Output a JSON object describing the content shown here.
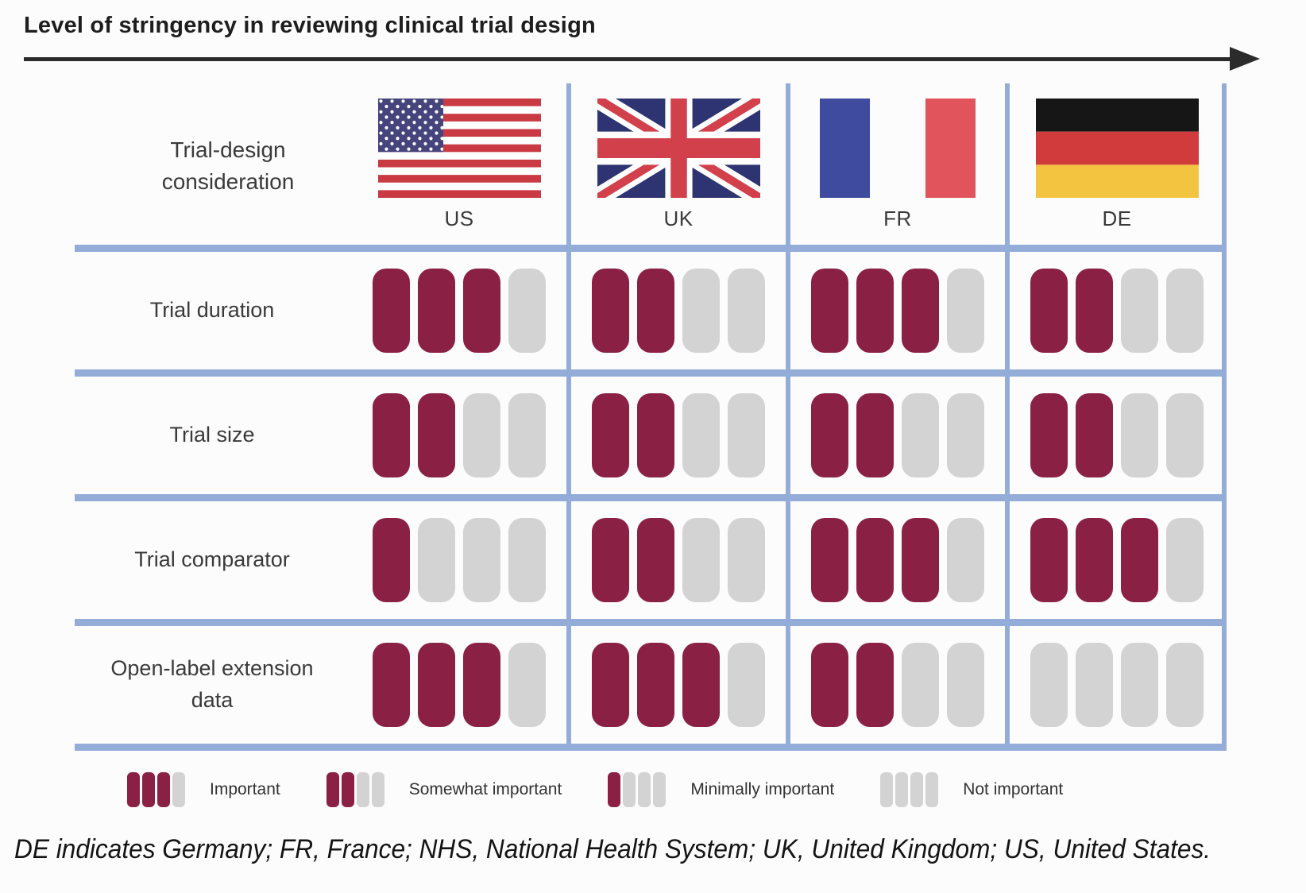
{
  "title": "Level of stringency in reviewing clinical trial design",
  "header": {
    "row_label": "Trial-design consideration",
    "columns": [
      {
        "code": "US",
        "flag_icon": "us-flag"
      },
      {
        "code": "UK",
        "flag_icon": "uk-flag"
      },
      {
        "code": "FR",
        "flag_icon": "fr-flag"
      },
      {
        "code": "DE",
        "flag_icon": "de-flag"
      }
    ]
  },
  "chart_data": {
    "type": "table",
    "title": "Level of stringency in reviewing clinical trial design",
    "categories": [
      "US",
      "UK",
      "FR",
      "DE"
    ],
    "scale_max": 4,
    "scale_meaning": {
      "3": "Important",
      "2": "Somewhat important",
      "1": "Minimally important",
      "0": "Not important"
    },
    "rows": [
      {
        "label": "Trial duration",
        "values": [
          3,
          2,
          3,
          2
        ]
      },
      {
        "label": "Trial size",
        "values": [
          2,
          2,
          2,
          2
        ]
      },
      {
        "label": "Trial comparator",
        "values": [
          1,
          2,
          3,
          3
        ]
      },
      {
        "label": "Open-label extension data",
        "values": [
          3,
          3,
          2,
          0
        ]
      }
    ]
  },
  "legend": [
    {
      "filled": 3,
      "label": "Important"
    },
    {
      "filled": 2,
      "label": "Somewhat important"
    },
    {
      "filled": 1,
      "label": "Minimally important"
    },
    {
      "filled": 0,
      "label": "Not important"
    }
  ],
  "footnote": "DE indicates Germany; FR, France; NHS, National Health System; UK, United Kingdom; US, United States.",
  "colors": {
    "filled_pill": "#8A2145",
    "empty_pill": "#D3D3D4",
    "grid_line": "#93ACD8",
    "arrow": "#2B2B2B"
  }
}
